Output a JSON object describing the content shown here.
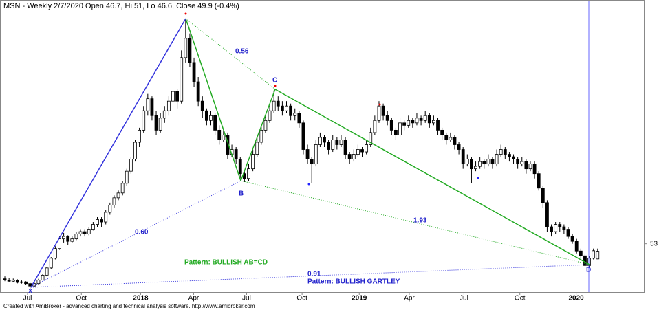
{
  "chart_data": {
    "type": "candlestick",
    "title": "MSN - Weekly 2/7/2020 Open 46.7, Hi 51, Lo 46.6, Close 49.9 (-0.4%)",
    "footer": "Created with AmiBroker - advanced charting and technical analysis software. http://www.amibroker.com",
    "ylim": [
      33,
      153
    ],
    "yticks": [
      53
    ],
    "xlim": [
      -1.15,
      152
    ],
    "xticks": [
      {
        "value": 5.4,
        "label": "Jul"
      },
      {
        "value": 18.2,
        "label": "Oct"
      },
      {
        "value": 32.3,
        "label": "2018"
      },
      {
        "value": 44.9,
        "label": "Apr"
      },
      {
        "value": 57.5,
        "label": "Jul"
      },
      {
        "value": 70.7,
        "label": "Oct"
      },
      {
        "value": 84.3,
        "label": "2019"
      },
      {
        "value": 96.2,
        "label": "Apr"
      },
      {
        "value": 109.2,
        "label": "Jul"
      },
      {
        "value": 122.5,
        "label": "Oct"
      },
      {
        "value": 135.9,
        "label": "2020"
      }
    ],
    "up_color": "#ffffff",
    "down_color": "#000000",
    "candles": [
      [
        38.5,
        39.5,
        37.5,
        38
      ],
      [
        38,
        38.8,
        37,
        37.5
      ],
      [
        37.5,
        38.6,
        37,
        38
      ],
      [
        38,
        38.3,
        36.6,
        37
      ],
      [
        37,
        37.8,
        36.5,
        37.2
      ],
      [
        37.2,
        37.5,
        36,
        36.5
      ],
      [
        36.5,
        36.8,
        34.4,
        35.5
      ],
      [
        35.5,
        37,
        35.2,
        36.5
      ],
      [
        36.5,
        38.5,
        36.2,
        38
      ],
      [
        38,
        40.5,
        37.8,
        40
      ],
      [
        40,
        43.5,
        39.5,
        43
      ],
      [
        43,
        47.5,
        42.5,
        47
      ],
      [
        47,
        52,
        46.5,
        51
      ],
      [
        51,
        56,
        50.5,
        55
      ],
      [
        55,
        57.5,
        53.5,
        56
      ],
      [
        56,
        56.5,
        52.5,
        54
      ],
      [
        54,
        56,
        53.5,
        55
      ],
      [
        55,
        58,
        54.5,
        57
      ],
      [
        57,
        59,
        56,
        58
      ],
      [
        58,
        59,
        56,
        57
      ],
      [
        57,
        60,
        56.5,
        59
      ],
      [
        59,
        62,
        58.5,
        61
      ],
      [
        61,
        64,
        60,
        63
      ],
      [
        63,
        64,
        60,
        62
      ],
      [
        62,
        67,
        61,
        66
      ],
      [
        66,
        70,
        65,
        69
      ],
      [
        69,
        73,
        68,
        72
      ],
      [
        72,
        75,
        71,
        74
      ],
      [
        74,
        79,
        73,
        78
      ],
      [
        78,
        84,
        77,
        83
      ],
      [
        83,
        89,
        82,
        88
      ],
      [
        88,
        96,
        87,
        95
      ],
      [
        95,
        101,
        93,
        100
      ],
      [
        100,
        110,
        99,
        108
      ],
      [
        108,
        115,
        106,
        113
      ],
      [
        113,
        114,
        104,
        106
      ],
      [
        106,
        108,
        98,
        100
      ],
      [
        100,
        107,
        99,
        105
      ],
      [
        105,
        110,
        103,
        108
      ],
      [
        108,
        114,
        106,
        112
      ],
      [
        112,
        118,
        110,
        116
      ],
      [
        116,
        117,
        109,
        112
      ],
      [
        112,
        133,
        111,
        130
      ],
      [
        130,
        145.7,
        128,
        138
      ],
      [
        138,
        140,
        126,
        128
      ],
      [
        128,
        130,
        118,
        120
      ],
      [
        120,
        122,
        110,
        112
      ],
      [
        112,
        114,
        105,
        108
      ],
      [
        108,
        109,
        102,
        104
      ],
      [
        104,
        108,
        102,
        106
      ],
      [
        106,
        107,
        98,
        100
      ],
      [
        100,
        102,
        94,
        96
      ],
      [
        96,
        100,
        95,
        98
      ],
      [
        98,
        99,
        88,
        90
      ],
      [
        90,
        94,
        89,
        92
      ],
      [
        92,
        93,
        86,
        88
      ],
      [
        88,
        89,
        80,
        82
      ],
      [
        82,
        83,
        78.5,
        80
      ],
      [
        80,
        86,
        79,
        84
      ],
      [
        84,
        92,
        83,
        90
      ],
      [
        90,
        97,
        89,
        95
      ],
      [
        95,
        102,
        94,
        100
      ],
      [
        100,
        106,
        99,
        104
      ],
      [
        104,
        110,
        103,
        108
      ],
      [
        108,
        116.4,
        107,
        112
      ],
      [
        112,
        114,
        108,
        110
      ],
      [
        110,
        112,
        106,
        108
      ],
      [
        108,
        112,
        107,
        110
      ],
      [
        110,
        111,
        104,
        106
      ],
      [
        106,
        109,
        104,
        107
      ],
      [
        107,
        108,
        101,
        103
      ],
      [
        103,
        104,
        90,
        92
      ],
      [
        92,
        94,
        86,
        88
      ],
      [
        88,
        89,
        78,
        86
      ],
      [
        86,
        96,
        85,
        94
      ],
      [
        94,
        99,
        93,
        97
      ],
      [
        97,
        98,
        93,
        95
      ],
      [
        95,
        96,
        90,
        92
      ],
      [
        92,
        98,
        91,
        96
      ],
      [
        96,
        97,
        92,
        94
      ],
      [
        94,
        98,
        93,
        96
      ],
      [
        96,
        97,
        88,
        90
      ],
      [
        90,
        91,
        86,
        88
      ],
      [
        88,
        92,
        87,
        90
      ],
      [
        90,
        94,
        89,
        92
      ],
      [
        92,
        93,
        89,
        91
      ],
      [
        91,
        96,
        90,
        94
      ],
      [
        94,
        101,
        93,
        99
      ],
      [
        99,
        106,
        98,
        104
      ],
      [
        104,
        112,
        103,
        110
      ],
      [
        110,
        111,
        104,
        106
      ],
      [
        106,
        108,
        102,
        104
      ],
      [
        104,
        105,
        98,
        100
      ],
      [
        100,
        101,
        96,
        98
      ],
      [
        98,
        105,
        97,
        103
      ],
      [
        103,
        104,
        100,
        102
      ],
      [
        102,
        106,
        101,
        104
      ],
      [
        104,
        105,
        101,
        103
      ],
      [
        103,
        107,
        102,
        105
      ],
      [
        105,
        106,
        102,
        104
      ],
      [
        104,
        108,
        103,
        106
      ],
      [
        106,
        107,
        101,
        103
      ],
      [
        103,
        106,
        102,
        104
      ],
      [
        104,
        105,
        98,
        100
      ],
      [
        100,
        101,
        96,
        98
      ],
      [
        98,
        99,
        94,
        96
      ],
      [
        96,
        99,
        95,
        97
      ],
      [
        97,
        98,
        92,
        94
      ],
      [
        94,
        95,
        90,
        92
      ],
      [
        92,
        93,
        84,
        86
      ],
      [
        86,
        90,
        85,
        88
      ],
      [
        88,
        89,
        78,
        84
      ],
      [
        84,
        87,
        83,
        85
      ],
      [
        85,
        89,
        84,
        87
      ],
      [
        87,
        88,
        84,
        86
      ],
      [
        86,
        90,
        85,
        88
      ],
      [
        88,
        89,
        84,
        86
      ],
      [
        86,
        92,
        85,
        90
      ],
      [
        90,
        94,
        89,
        92
      ],
      [
        92,
        93,
        88,
        90
      ],
      [
        90,
        91,
        87,
        89
      ],
      [
        89,
        90,
        86,
        88
      ],
      [
        88,
        89,
        84,
        86
      ],
      [
        86,
        89,
        85,
        87
      ],
      [
        87,
        88,
        82,
        84
      ],
      [
        84,
        87,
        83,
        86
      ],
      [
        86,
        87,
        80,
        82
      ],
      [
        82,
        83,
        75,
        76
      ],
      [
        76,
        77,
        68,
        70
      ],
      [
        70,
        71,
        58,
        60
      ],
      [
        60,
        61,
        56,
        58
      ],
      [
        58,
        62,
        57,
        61
      ],
      [
        61,
        62,
        58,
        60
      ],
      [
        60,
        61,
        57,
        59
      ],
      [
        59,
        60,
        55,
        56
      ],
      [
        56,
        57,
        53,
        54
      ],
      [
        54,
        55,
        49,
        50
      ],
      [
        50,
        51,
        47,
        48
      ],
      [
        48,
        49,
        43.8,
        44
      ],
      [
        44,
        48,
        43.5,
        47
      ],
      [
        47,
        51,
        46.5,
        50.1
      ],
      [
        46.7,
        51,
        46.6,
        49.9
      ]
    ],
    "annotations": {
      "ratios": [
        "0.56",
        "0.60",
        "1.93",
        "0.91"
      ],
      "points": [
        "X",
        "B",
        "C",
        "D"
      ],
      "patterns": [
        "Pattern: BULLISH AB=CD",
        "Pattern: BULLISH GARTLEY"
      ]
    }
  }
}
